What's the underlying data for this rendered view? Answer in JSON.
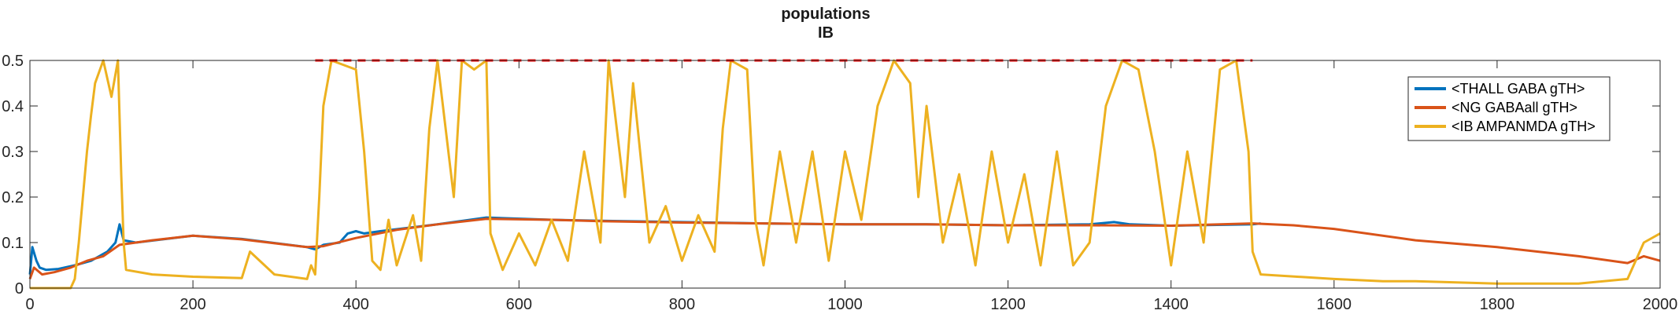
{
  "chart_data": {
    "type": "line",
    "title": [
      "populations",
      "IB"
    ],
    "xlabel": "",
    "ylabel": "",
    "xlim": [
      0,
      2000
    ],
    "ylim": [
      0,
      0.5
    ],
    "xticks": [
      0,
      200,
      400,
      600,
      800,
      1000,
      1200,
      1400,
      1600,
      1800,
      2000
    ],
    "yticks": [
      0,
      0.1,
      0.2,
      0.3,
      0.4,
      0.5
    ],
    "ytick_labels": [
      "0",
      "0.1",
      "0.2",
      "0.3",
      "0.4",
      "0.5"
    ],
    "grid": false,
    "legend_position": "top-right",
    "series": [
      {
        "name": "<THALL GABA gTH>",
        "color": "#0072BD",
        "points": [
          [
            0,
            0.03
          ],
          [
            3,
            0.09
          ],
          [
            8,
            0.06
          ],
          [
            12,
            0.045
          ],
          [
            20,
            0.04
          ],
          [
            35,
            0.042
          ],
          [
            55,
            0.05
          ],
          [
            75,
            0.06
          ],
          [
            95,
            0.08
          ],
          [
            105,
            0.1
          ],
          [
            110,
            0.14
          ],
          [
            115,
            0.105
          ],
          [
            130,
            0.1
          ],
          [
            200,
            0.115
          ],
          [
            260,
            0.108
          ],
          [
            340,
            0.09
          ],
          [
            350,
            0.085
          ],
          [
            360,
            0.095
          ],
          [
            380,
            0.1
          ],
          [
            390,
            0.12
          ],
          [
            400,
            0.125
          ],
          [
            410,
            0.12
          ],
          [
            430,
            0.125
          ],
          [
            500,
            0.14
          ],
          [
            560,
            0.155
          ],
          [
            640,
            0.15
          ],
          [
            700,
            0.148
          ],
          [
            800,
            0.145
          ],
          [
            900,
            0.142
          ],
          [
            1000,
            0.14
          ],
          [
            1100,
            0.14
          ],
          [
            1200,
            0.138
          ],
          [
            1300,
            0.14
          ],
          [
            1330,
            0.145
          ],
          [
            1350,
            0.14
          ],
          [
            1400,
            0.137
          ],
          [
            1500,
            0.14
          ],
          [
            1510,
            0.142
          ]
        ]
      },
      {
        "name": "<NG GABAall gTH>",
        "color": "#D95319",
        "points": [
          [
            0,
            0.02
          ],
          [
            5,
            0.045
          ],
          [
            15,
            0.03
          ],
          [
            30,
            0.035
          ],
          [
            50,
            0.045
          ],
          [
            70,
            0.06
          ],
          [
            90,
            0.07
          ],
          [
            110,
            0.095
          ],
          [
            130,
            0.1
          ],
          [
            150,
            0.105
          ],
          [
            200,
            0.115
          ],
          [
            260,
            0.107
          ],
          [
            340,
            0.09
          ],
          [
            360,
            0.092
          ],
          [
            400,
            0.11
          ],
          [
            450,
            0.128
          ],
          [
            500,
            0.14
          ],
          [
            560,
            0.152
          ],
          [
            640,
            0.15
          ],
          [
            700,
            0.147
          ],
          [
            800,
            0.144
          ],
          [
            900,
            0.142
          ],
          [
            1000,
            0.14
          ],
          [
            1100,
            0.14
          ],
          [
            1200,
            0.138
          ],
          [
            1300,
            0.138
          ],
          [
            1400,
            0.137
          ],
          [
            1500,
            0.142
          ],
          [
            1550,
            0.138
          ],
          [
            1600,
            0.13
          ],
          [
            1700,
            0.105
          ],
          [
            1800,
            0.09
          ],
          [
            1900,
            0.07
          ],
          [
            1960,
            0.055
          ],
          [
            1980,
            0.07
          ],
          [
            2000,
            0.06
          ]
        ]
      },
      {
        "name": "<IB AMPANMDA gTH>",
        "color": "#EDB120",
        "points": [
          [
            0,
            0.0
          ],
          [
            50,
            0.0
          ],
          [
            55,
            0.02
          ],
          [
            60,
            0.1
          ],
          [
            65,
            0.2
          ],
          [
            70,
            0.3
          ],
          [
            75,
            0.38
          ],
          [
            80,
            0.45
          ],
          [
            90,
            0.5
          ],
          [
            100,
            0.42
          ],
          [
            108,
            0.5
          ],
          [
            112,
            0.25
          ],
          [
            115,
            0.1
          ],
          [
            118,
            0.04
          ],
          [
            150,
            0.03
          ],
          [
            200,
            0.025
          ],
          [
            260,
            0.022
          ],
          [
            270,
            0.08
          ],
          [
            300,
            0.03
          ],
          [
            340,
            0.02
          ],
          [
            345,
            0.05
          ],
          [
            350,
            0.03
          ],
          [
            355,
            0.2
          ],
          [
            360,
            0.4
          ],
          [
            370,
            0.5
          ],
          [
            400,
            0.48
          ],
          [
            410,
            0.3
          ],
          [
            420,
            0.06
          ],
          [
            430,
            0.04
          ],
          [
            440,
            0.15
          ],
          [
            450,
            0.05
          ],
          [
            470,
            0.16
          ],
          [
            480,
            0.06
          ],
          [
            490,
            0.35
          ],
          [
            500,
            0.5
          ],
          [
            520,
            0.2
          ],
          [
            530,
            0.5
          ],
          [
            545,
            0.48
          ],
          [
            560,
            0.5
          ],
          [
            565,
            0.12
          ],
          [
            580,
            0.04
          ],
          [
            600,
            0.12
          ],
          [
            620,
            0.05
          ],
          [
            640,
            0.15
          ],
          [
            660,
            0.06
          ],
          [
            680,
            0.3
          ],
          [
            700,
            0.1
          ],
          [
            710,
            0.5
          ],
          [
            730,
            0.2
          ],
          [
            740,
            0.45
          ],
          [
            760,
            0.1
          ],
          [
            780,
            0.18
          ],
          [
            800,
            0.06
          ],
          [
            820,
            0.16
          ],
          [
            840,
            0.08
          ],
          [
            850,
            0.35
          ],
          [
            860,
            0.5
          ],
          [
            880,
            0.48
          ],
          [
            890,
            0.15
          ],
          [
            900,
            0.05
          ],
          [
            920,
            0.3
          ],
          [
            940,
            0.1
          ],
          [
            960,
            0.3
          ],
          [
            980,
            0.06
          ],
          [
            1000,
            0.3
          ],
          [
            1020,
            0.15
          ],
          [
            1040,
            0.4
          ],
          [
            1060,
            0.5
          ],
          [
            1080,
            0.45
          ],
          [
            1090,
            0.2
          ],
          [
            1100,
            0.4
          ],
          [
            1120,
            0.1
          ],
          [
            1140,
            0.25
          ],
          [
            1160,
            0.05
          ],
          [
            1180,
            0.3
          ],
          [
            1200,
            0.1
          ],
          [
            1220,
            0.25
          ],
          [
            1240,
            0.05
          ],
          [
            1260,
            0.3
          ],
          [
            1280,
            0.05
          ],
          [
            1300,
            0.1
          ],
          [
            1320,
            0.4
          ],
          [
            1340,
            0.5
          ],
          [
            1360,
            0.48
          ],
          [
            1380,
            0.3
          ],
          [
            1400,
            0.05
          ],
          [
            1420,
            0.3
          ],
          [
            1440,
            0.1
          ],
          [
            1460,
            0.48
          ],
          [
            1480,
            0.5
          ],
          [
            1495,
            0.3
          ],
          [
            1500,
            0.08
          ],
          [
            1510,
            0.03
          ],
          [
            1600,
            0.02
          ],
          [
            1660,
            0.015
          ],
          [
            1700,
            0.015
          ],
          [
            1800,
            0.01
          ],
          [
            1900,
            0.01
          ],
          [
            1960,
            0.02
          ],
          [
            1980,
            0.1
          ],
          [
            2000,
            0.12
          ]
        ]
      }
    ],
    "reference_line": {
      "y": 0.5,
      "x_range": [
        350,
        1500
      ],
      "color": "#FF0000",
      "style": "dashed"
    }
  }
}
